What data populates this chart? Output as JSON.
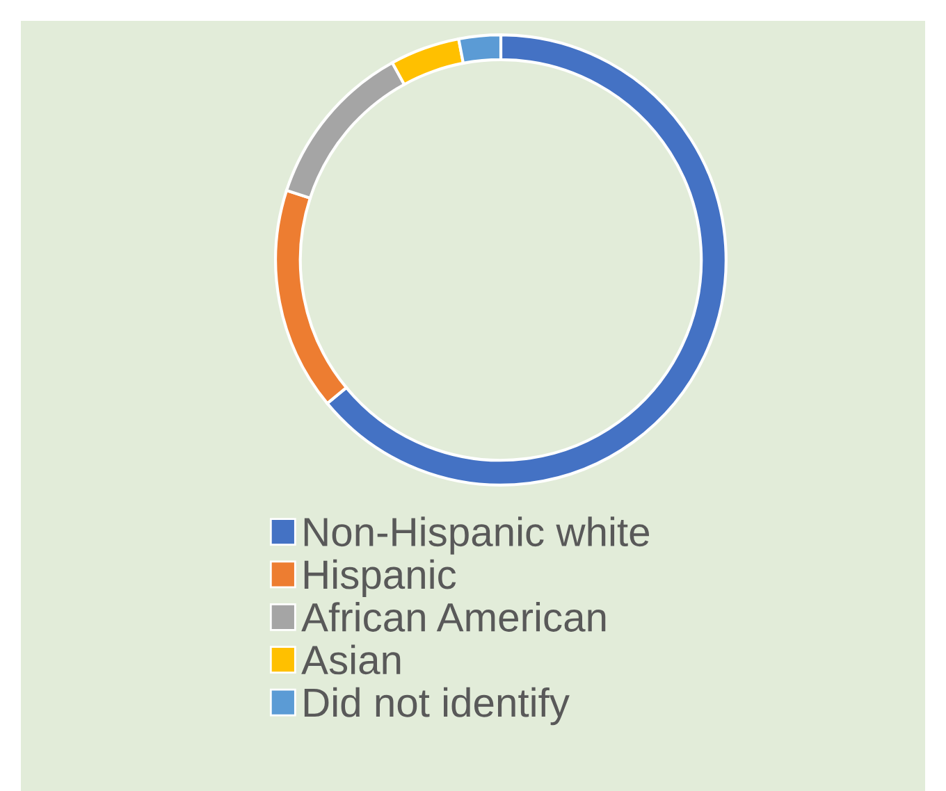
{
  "chart_data": {
    "type": "donut",
    "categories": [
      "Non-Hispanic white",
      "Hispanic",
      "African American",
      "Asian",
      "Did not identify"
    ],
    "values": [
      64,
      16,
      12,
      5,
      3
    ],
    "colors": [
      "#4472c4",
      "#ed7d31",
      "#a5a5a5",
      "#ffc000",
      "#5b9bd5"
    ],
    "legend": "bottom"
  }
}
